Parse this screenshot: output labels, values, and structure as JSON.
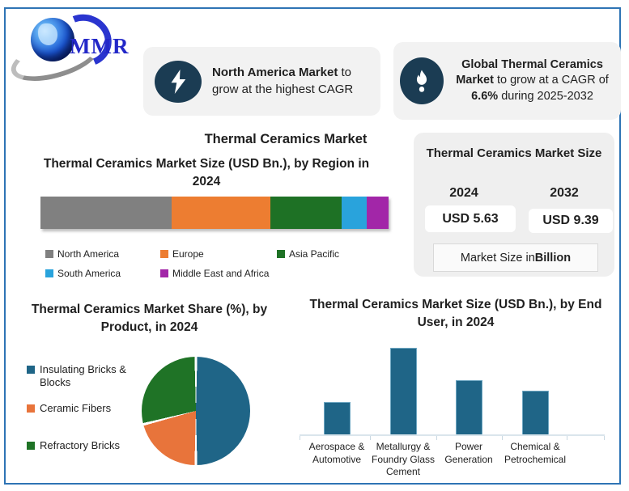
{
  "logo": {
    "text": "MMR"
  },
  "main_title": "Thermal Ceramics Market",
  "callout_growth": {
    "bold": "North America Market",
    "rest": " to grow at the highest CAGR"
  },
  "callout_cagr": {
    "bold1": "Global Thermal Ceramics Market",
    "rest1": " to grow at a CAGR of ",
    "bold2": "6.6%",
    "rest2": " during 2025-2032"
  },
  "market_size_panel": {
    "title": "Thermal Ceramics Market Size",
    "year_2024": "2024",
    "year_2032": "2032",
    "value_2024": "USD 5.63",
    "value_2032": "USD 9.39",
    "note_prefix": "Market Size in ",
    "note_bold": "Billion",
    "value_color": "#0e7ac5"
  },
  "chart_data": [
    {
      "type": "bar",
      "variant": "horizontal-stacked-single-bar",
      "title": "Thermal Ceramics Market Size (USD Bn.), by Region in 2024",
      "categories": [
        "North America",
        "Europe",
        "Asia Pacific",
        "South America",
        "Middle East and Africa"
      ],
      "share_percent_estimated": [
        37.6,
        28.4,
        20.4,
        7.3,
        6.3
      ],
      "colors": [
        "#808080",
        "#ED7D31",
        "#1E7125",
        "#29A3DC",
        "#A226A8"
      ],
      "legend_position": "below",
      "axis_labels_shown": false
    },
    {
      "type": "pie",
      "title": "Thermal Ceramics Market Share (%), by Product, in 2024",
      "categories": [
        "Insulating Bricks & Blocks",
        "Ceramic Fibers",
        "Refractory Bricks"
      ],
      "values_percent_estimated": [
        50,
        21,
        29
      ],
      "colors": [
        "#1F6587",
        "#E8743B",
        "#1F7326"
      ],
      "legend_position": "left",
      "start_angle_deg": 0,
      "direction": "clockwise"
    },
    {
      "type": "bar",
      "title": "Thermal Ceramics Market Size (USD Bn.), by End User, in 2024",
      "categories": [
        "Aerospace & Automotive",
        "Metallurgy & Foundry Glass Cement",
        "Power Generation",
        "Chemical & Petrochemical"
      ],
      "values_relative_to_max_estimated": [
        0.37,
        1.0,
        0.63,
        0.5
      ],
      "bar_color": "#1F6587",
      "ylabel": "",
      "y_axis_shown": false,
      "grid": false
    }
  ]
}
